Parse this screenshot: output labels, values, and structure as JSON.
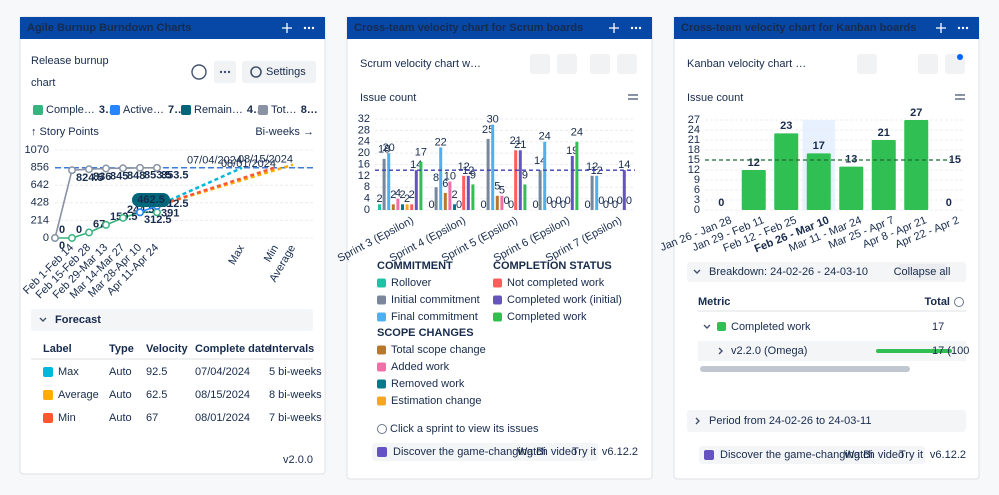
{
  "chart_data": [
    {
      "type": "line",
      "y_label": "↑ Story Points",
      "x_label": "Bi-weeks →",
      "categories": [
        null,
        "Feb 1-Feb 14",
        "Feb 15-Feb 28",
        "Feb 29-Mar 13",
        "Mar 14-Mar 27",
        "Mar 28-Apr 10",
        "Apr 11-Apr 24"
      ],
      "ylim": [
        0,
        1070
      ],
      "yticks": [
        0,
        214,
        428,
        642,
        856,
        1070
      ],
      "grid": true,
      "series": [
        {
          "name": "Comple…",
          "summary": "3…",
          "color": "#36b37e",
          "values": [
            0,
            0,
            67,
            159.5,
            244.5,
            312.5,
            312.5
          ]
        },
        {
          "name": "Active…",
          "summary": "7…",
          "color": "#2684ff",
          "values": [
            null,
            null,
            null,
            null,
            null,
            312.5,
            391
          ]
        },
        {
          "name": "Remain…",
          "summary": "4…",
          "color": "#00667a",
          "badge": true,
          "values": [
            null,
            null,
            null,
            null,
            null,
            null,
            462.5
          ]
        },
        {
          "name": "Tot…",
          "summary": "8…",
          "color": "#8993a4",
          "values": [
            0,
            824.5,
            836,
            845,
            848,
            853.5,
            853.5
          ]
        }
      ],
      "forecast": [
        {
          "label": "Max",
          "color": "#00b8d9",
          "type": "Auto",
          "velocity": 92.5,
          "date": "07/04/2024",
          "intervals": {
            "value": 5,
            "label": "5 bi-weeks"
          }
        },
        {
          "label": "Average",
          "color": "#ffab00",
          "type": "Auto",
          "velocity": 62.5,
          "date": "08/15/2024",
          "intervals": {
            "value": 8,
            "label": "8 bi-weeks"
          }
        },
        {
          "label": "Min",
          "color": "#ff5630",
          "type": "Auto",
          "velocity": 67,
          "date": "08/01/2024",
          "intervals": {
            "value": 7,
            "label": "7 bi-weeks"
          }
        }
      ]
    },
    {
      "type": "bar",
      "y_label": "Issue count",
      "categories": [
        "Sprint 3 (Epsilon)",
        "Sprint 4 (Epsilon)",
        "Sprint 5 (Epsilon)",
        "Sprint 6 (Epsilon)",
        "Sprint 7 (Epsilon)"
      ],
      "ylim": [
        0,
        32
      ],
      "yticks": [
        0,
        4,
        8,
        12,
        16,
        20,
        24,
        28,
        32
      ],
      "grid": true,
      "average": 14,
      "groups": [
        {
          "title": "COMMITMENT",
          "series": [
            {
              "name": "Rollover",
              "color": "#20c1a5",
              "values": [
                2,
                0,
                0,
                0,
                0
              ]
            },
            {
              "name": "Initial commitment",
              "color": "#7a869a",
              "values": [
                18,
                8,
                25,
                14,
                12
              ]
            },
            {
              "name": "Final commitment",
              "color": "#4fb0ef",
              "values": [
                20,
                22,
                30,
                24,
                12
              ]
            }
          ]
        },
        {
          "title": "SCOPE CHANGES",
          "series": [
            {
              "name": "Total scope change",
              "color": "#b9772c",
              "values": [
                2,
                6,
                5,
                0,
                0
              ]
            },
            {
              "name": "Added work",
              "color": "#f06fa8",
              "values": [
                4,
                10,
                5,
                0,
                0
              ]
            },
            {
              "name": "Removed work",
              "color": "#00798c",
              "values": [
                2,
                2,
                0,
                0,
                0
              ]
            },
            {
              "name": "Estimation change",
              "color": "#f5a623",
              "values": [
                2,
                0,
                0,
                0,
                0
              ]
            }
          ]
        },
        {
          "title": "COMPLETION STATUS",
          "series": [
            {
              "name": "Not completed work",
              "color": "#ff5c5c",
              "values": [
                2,
                12,
                21,
                0,
                0
              ]
            },
            {
              "name": "Completed work (initial)",
              "color": "#6554c0",
              "values": [
                14,
                12,
                21,
                19,
                14
              ]
            },
            {
              "name": "Completed work",
              "color": "#2fbf52",
              "values": [
                17,
                9,
                9,
                24,
                0
              ]
            }
          ]
        }
      ],
      "note": "Click a sprint to view its issues"
    },
    {
      "type": "bar",
      "y_label": "Issue count",
      "categories": [
        "Jan 26 - Jan 28",
        "Jan 29 - Feb 11",
        "Feb 12 - Feb 25",
        "Feb 26 - Mar 10",
        "Mar 11 - Mar 24",
        "Mar 25 - Apr 7",
        "Apr 8 - Apr 21",
        "Apr 22 - Apr 2"
      ],
      "values": [
        0,
        12,
        23,
        17,
        13,
        21,
        27,
        0
      ],
      "color": "#2fbf52",
      "ylim": [
        0,
        27
      ],
      "yticks": [
        0,
        3,
        6,
        9,
        12,
        15,
        18,
        21,
        24,
        27
      ],
      "grid": true,
      "average": 15,
      "selected": 3
    }
  ],
  "panels": [
    {
      "header": "Agile Burnup Burndown Charts",
      "title_lines": [
        "Release burnup",
        "chart"
      ],
      "button": "Settings",
      "section": "Forecast",
      "table_columns": [
        "Label",
        "Type",
        "Velocity",
        "Complete date",
        "Intervals"
      ],
      "version": "v2.0.0"
    },
    {
      "header": "Cross-team velocity chart for Scrum boards",
      "title": "Scrum velocity chart w…",
      "banner": {
        "text": "Discover the game-changing Bi",
        "link": "Watch video",
        "action": "Try it"
      },
      "version": "v6.12.2"
    },
    {
      "header": "Cross-team velocity chart for Kanban boards",
      "title": "Kanban velocity chart …",
      "breakdown": {
        "title": "Breakdown: 24-02-26 - 24-03-10",
        "button": "Collapse all",
        "columns": [
          "Metric",
          "Total"
        ],
        "rows": [
          {
            "label": "Completed work",
            "total": 17,
            "color": "#2fbf52"
          },
          {
            "label": "v2.2.0 (Omega)",
            "total": "17 (100"
          }
        ]
      },
      "period": "Period from 24-02-26 to 24-03-11",
      "banner": {
        "text": "Discover the game-changing Bi",
        "link": "Watch video",
        "action": "Try it"
      },
      "version": "v6.12.2"
    }
  ]
}
